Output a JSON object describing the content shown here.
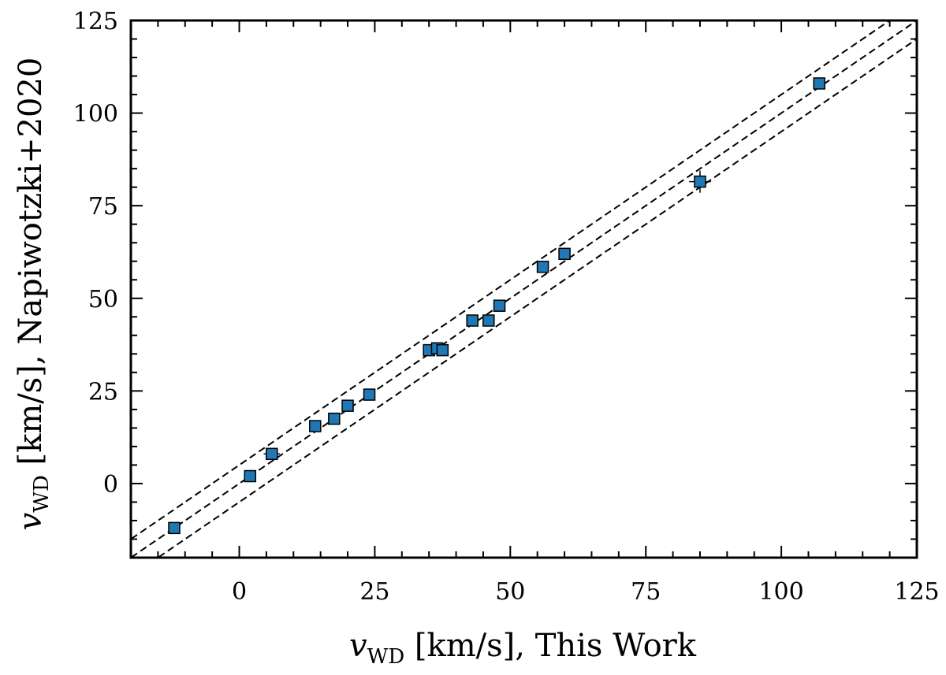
{
  "chart_data": {
    "type": "scatter",
    "title": "",
    "xlabel": {
      "symbol": "v",
      "subscript": "WD",
      "text": " [km/s], This Work"
    },
    "ylabel": {
      "symbol": "v",
      "subscript": "WD",
      "text": " [km/s], Napiwotzki+2020"
    },
    "xlim": [
      -20,
      125
    ],
    "ylim": [
      -20,
      125
    ],
    "x_ticks": [
      0,
      25,
      50,
      75,
      100,
      125
    ],
    "y_ticks": [
      0,
      25,
      50,
      75,
      100,
      125
    ],
    "x_tick_labels": [
      "0",
      "25",
      "50",
      "75",
      "100",
      "125"
    ],
    "y_tick_labels": [
      "0",
      "25",
      "50",
      "75",
      "100",
      "125"
    ],
    "grid": false,
    "marker_color": "#1f77b4",
    "reference_lines": [
      {
        "name": "one-to-one",
        "offset": 0,
        "style": "dashed"
      },
      {
        "name": "upper-offset",
        "offset": 5,
        "style": "dashed"
      },
      {
        "name": "lower-offset",
        "offset": -5,
        "style": "dashed"
      }
    ],
    "points": [
      {
        "x": -12,
        "y": -12,
        "xerr": 0.5,
        "yerr": 0.5
      },
      {
        "x": 2,
        "y": 2,
        "xerr": 0.5,
        "yerr": 0.8
      },
      {
        "x": 6,
        "y": 8,
        "xerr": 1.5,
        "yerr": 1.0
      },
      {
        "x": 14,
        "y": 15.5,
        "xerr": 0.5,
        "yerr": 0.5
      },
      {
        "x": 17.5,
        "y": 17.5,
        "xerr": 0.5,
        "yerr": 0.5
      },
      {
        "x": 20,
        "y": 21,
        "xerr": 0.5,
        "yerr": 0.5
      },
      {
        "x": 24,
        "y": 24,
        "xerr": 0.5,
        "yerr": 0.5
      },
      {
        "x": 35,
        "y": 36,
        "xerr": 1.0,
        "yerr": 0.8
      },
      {
        "x": 36.5,
        "y": 36.5,
        "xerr": 0.8,
        "yerr": 1.0
      },
      {
        "x": 37.5,
        "y": 36,
        "xerr": 0.8,
        "yerr": 0.8
      },
      {
        "x": 43,
        "y": 44,
        "xerr": 0.5,
        "yerr": 0.5
      },
      {
        "x": 46,
        "y": 44,
        "xerr": 0.5,
        "yerr": 0.5
      },
      {
        "x": 48,
        "y": 48,
        "xerr": 0.5,
        "yerr": 0.5
      },
      {
        "x": 56,
        "y": 58.5,
        "xerr": 0.5,
        "yerr": 0.5
      },
      {
        "x": 60,
        "y": 62,
        "xerr": 0.5,
        "yerr": 0.5
      },
      {
        "x": 85,
        "y": 81.5,
        "xerr": 2.0,
        "yerr": 3.0
      },
      {
        "x": 107,
        "y": 108,
        "xerr": 0.5,
        "yerr": 0.8
      }
    ]
  }
}
